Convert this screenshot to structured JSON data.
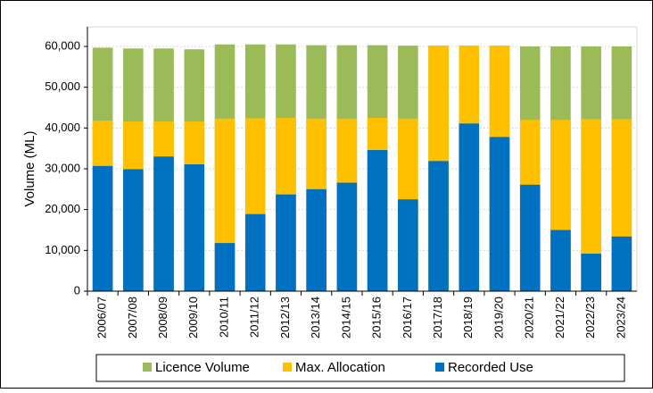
{
  "chart_data": {
    "type": "bar",
    "overlap": true,
    "y_label": "Volume (ML)",
    "categories": [
      "2006/07",
      "2007/08",
      "2008/09",
      "2009/10",
      "2010/11",
      "2011/12",
      "2012/13",
      "2013/14",
      "2014/15",
      "2015/16",
      "2016/17",
      "2017/18",
      "2018/19",
      "2019/20",
      "2020/21",
      "2021/22",
      "2022/23",
      "2023/24"
    ],
    "series": [
      {
        "name": "Licence Volume",
        "color": "#9bbb59",
        "values": [
          59700,
          59500,
          59500,
          59300,
          60500,
          60500,
          60500,
          60300,
          60300,
          60300,
          60200,
          60200,
          60200,
          60200,
          60000,
          60000,
          60000,
          60000
        ]
      },
      {
        "name": "Max. Allocation",
        "color": "#ffc000",
        "values": [
          41800,
          41600,
          41600,
          41600,
          42300,
          42400,
          42500,
          42300,
          42300,
          42500,
          42300,
          60200,
          60200,
          60200,
          42000,
          42000,
          42200,
          42200
        ]
      },
      {
        "name": "Recorded Use",
        "color": "#0070c0",
        "values": [
          30700,
          29900,
          33000,
          31100,
          11800,
          18900,
          23700,
          25000,
          26600,
          34600,
          22500,
          31900,
          41100,
          37800,
          26100,
          15000,
          9200,
          13400
        ]
      }
    ],
    "ylim": [
      0,
      60000
    ],
    "yticks": [
      0,
      {
        "value": 10000,
        "label": "10,000"
      },
      {
        "value": 20000,
        "label": "20,000"
      },
      {
        "value": 30000,
        "label": "30,000"
      },
      {
        "value": 40000,
        "label": "40,000"
      },
      {
        "value": 50000,
        "label": "50,000"
      },
      {
        "value": 60000,
        "label": "60,000"
      }
    ],
    "grid": true,
    "legend": "bottom"
  }
}
